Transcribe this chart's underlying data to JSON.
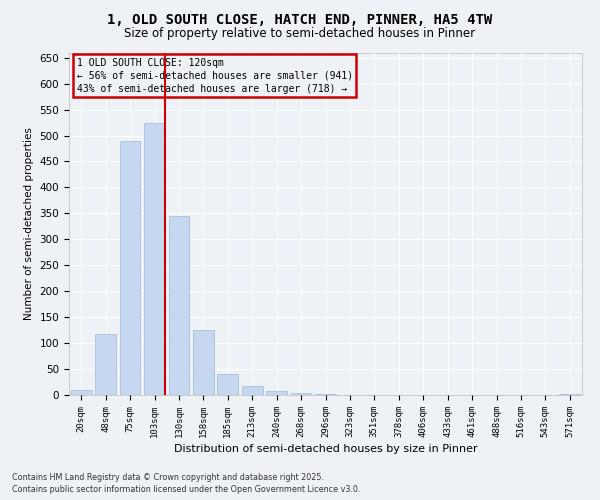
{
  "title_line1": "1, OLD SOUTH CLOSE, HATCH END, PINNER, HA5 4TW",
  "title_line2": "Size of property relative to semi-detached houses in Pinner",
  "xlabel": "Distribution of semi-detached houses by size in Pinner",
  "ylabel": "Number of semi-detached properties",
  "categories": [
    "20sqm",
    "48sqm",
    "75sqm",
    "103sqm",
    "130sqm",
    "158sqm",
    "185sqm",
    "213sqm",
    "240sqm",
    "268sqm",
    "296sqm",
    "323sqm",
    "351sqm",
    "378sqm",
    "406sqm",
    "433sqm",
    "461sqm",
    "488sqm",
    "516sqm",
    "543sqm",
    "571sqm"
  ],
  "values": [
    10,
    118,
    490,
    525,
    345,
    125,
    40,
    18,
    7,
    4,
    1,
    0,
    0,
    0,
    0,
    0,
    0,
    0,
    0,
    0,
    1
  ],
  "bar_color": "#c5d8f0",
  "bar_edge_color": "#a0b8d8",
  "property_bin_index": 3,
  "property_label": "1 OLD SOUTH CLOSE: 120sqm",
  "pct_smaller": 56,
  "n_smaller": 941,
  "pct_larger": 43,
  "n_larger": 718,
  "vline_color": "#cc0000",
  "annotation_box_edge_color": "#cc0000",
  "ylim": [
    0,
    660
  ],
  "yticks": [
    0,
    50,
    100,
    150,
    200,
    250,
    300,
    350,
    400,
    450,
    500,
    550,
    600,
    650
  ],
  "background_color": "#eef2f7",
  "grid_color": "#ffffff",
  "footnote_line1": "Contains HM Land Registry data © Crown copyright and database right 2025.",
  "footnote_line2": "Contains public sector information licensed under the Open Government Licence v3.0."
}
